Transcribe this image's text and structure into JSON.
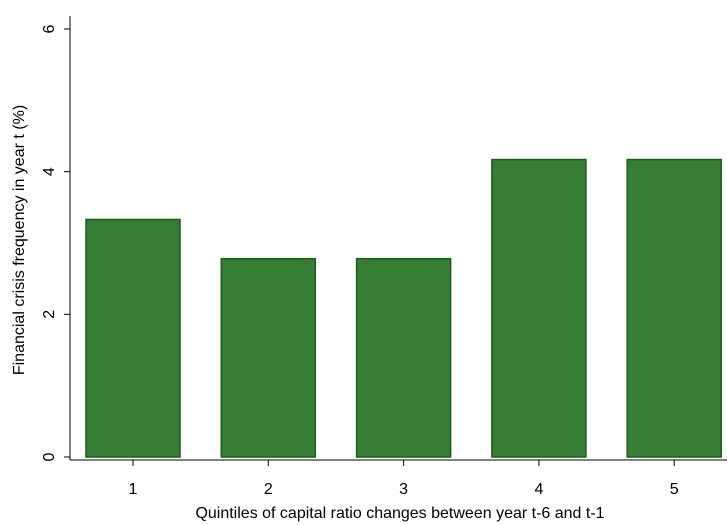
{
  "chart_data": {
    "type": "bar",
    "x_label": "Quintiles of capital ratio changes between year t-6 and t-1",
    "y_label": "Financial crisis frequency in year t (%)",
    "categories": [
      "1",
      "2",
      "3",
      "4",
      "5"
    ],
    "values": [
      3.33,
      2.78,
      2.78,
      4.17,
      4.17
    ],
    "color": "#367e33",
    "ylim": [
      0,
      6
    ],
    "yticks": [
      0,
      2,
      4,
      6
    ],
    "grid": false
  }
}
